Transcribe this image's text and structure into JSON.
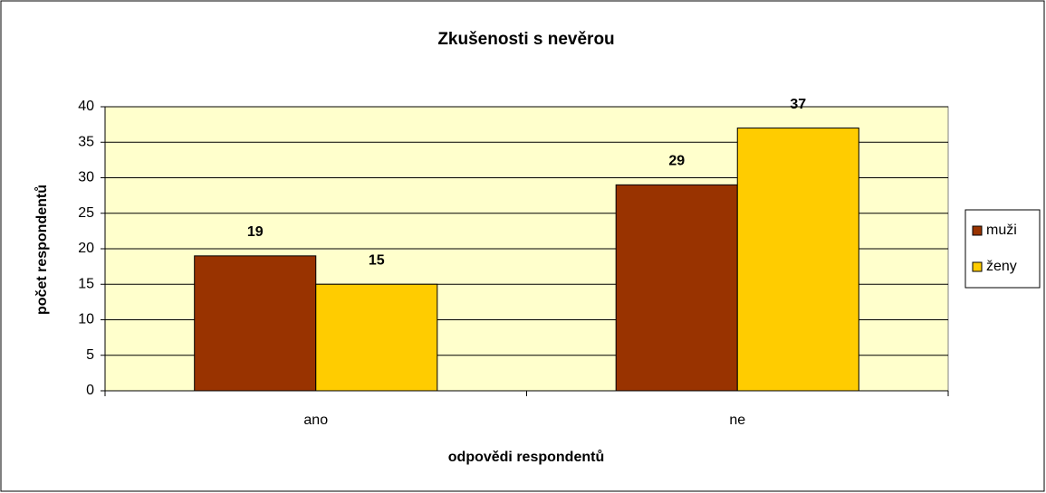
{
  "chart_data": {
    "type": "bar",
    "title": "Zkušenosti s nevěrou",
    "x_label": "odpovědi respondentů",
    "y_label": "počet respondentů",
    "categories": [
      "ano",
      "ne"
    ],
    "series": [
      {
        "name": "muži",
        "color": "#993300",
        "values": [
          19,
          29
        ]
      },
      {
        "name": "ženy",
        "color": "#FFCC00",
        "values": [
          15,
          37
        ]
      }
    ],
    "ylim": [
      0,
      40
    ],
    "yticks": [
      0,
      5,
      10,
      15,
      20,
      25,
      30,
      35,
      40
    ],
    "grid": true,
    "legend": "right"
  }
}
